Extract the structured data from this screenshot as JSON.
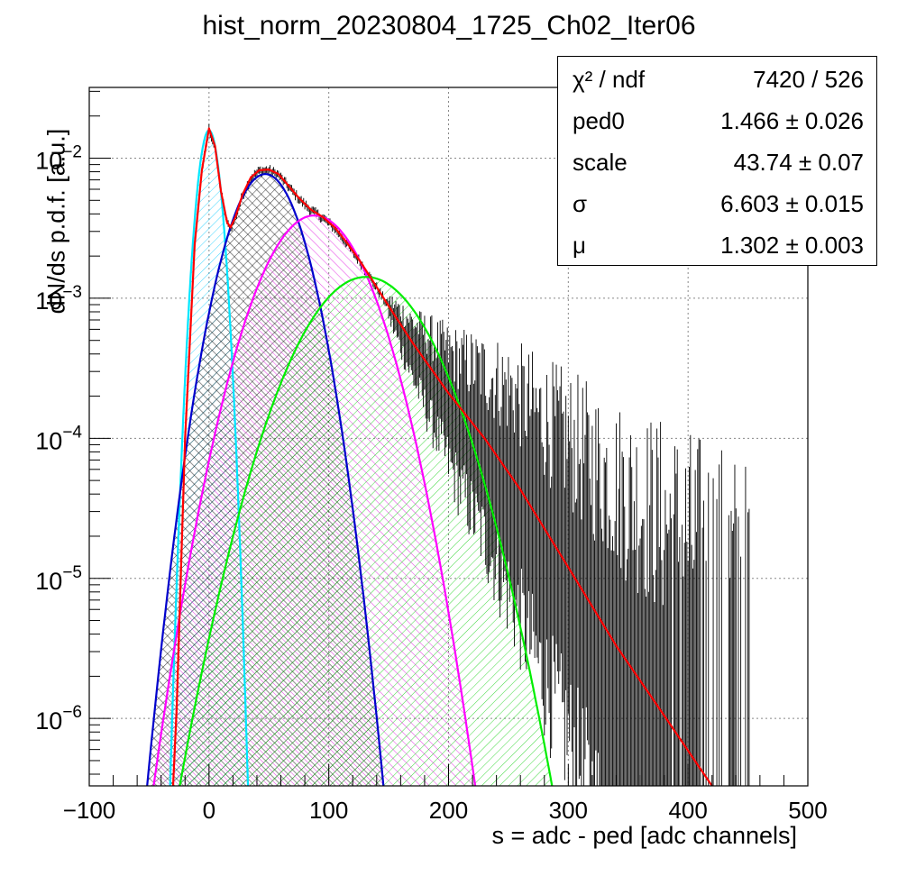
{
  "chart_data": {
    "type": "histogram-fit",
    "title": "hist_norm_20230804_1725_Ch02_Iter06",
    "xlabel": "s = adc - ped [adc channels]",
    "ylabel": "dN/ds p.d.f. [a.u.]",
    "xlim": [
      -100,
      500
    ],
    "ylim": [
      3.3e-07,
      0.032
    ],
    "yscale": "log",
    "grid": true,
    "x_ticks": [
      -100,
      0,
      100,
      200,
      300,
      400,
      500
    ],
    "x_tick_labels": [
      "−100",
      "0",
      "100",
      "200",
      "300",
      "400",
      "500"
    ],
    "y_ticks": [
      1e-06,
      1e-05,
      0.0001,
      0.001,
      0.01
    ],
    "y_tick_labels": [
      {
        "base": "10",
        "exp": "−6"
      },
      {
        "base": "10",
        "exp": "−5"
      },
      {
        "base": "10",
        "exp": "−4"
      },
      {
        "base": "10",
        "exp": "−3"
      },
      {
        "base": "10",
        "exp": "−2"
      }
    ],
    "components": [
      {
        "color": "#00e5ff",
        "hatch": "#00c8ff",
        "peak_x": 0,
        "peak_y": 0.0158,
        "sigma": 7.0
      },
      {
        "color": "#0000cc",
        "hatch": "#000000",
        "peak_x": 47,
        "peak_y": 0.0077,
        "sigma": 22.0
      },
      {
        "color": "#ff00ff",
        "hatch": "#dd00dd",
        "peak_x": 88,
        "peak_y": 0.0039,
        "sigma": 31.0
      },
      {
        "color": "#00ee00",
        "hatch": "#00cc00",
        "peak_x": 131,
        "peak_y": 0.00142,
        "sigma": 38.0
      }
    ],
    "fit": {
      "color": "#ff0000",
      "points": [
        [
          -30,
          3.3e-07
        ],
        [
          -27,
          1.2e-06
        ],
        [
          -20,
          0.0001
        ],
        [
          -12,
          0.0024
        ],
        [
          -6,
          0.0082
        ],
        [
          0,
          0.0163
        ],
        [
          5,
          0.0122
        ],
        [
          10,
          0.0058
        ],
        [
          15,
          0.0035
        ],
        [
          18,
          0.0032
        ],
        [
          22,
          0.0038
        ],
        [
          28,
          0.0055
        ],
        [
          35,
          0.0073
        ],
        [
          42,
          0.0082
        ],
        [
          50,
          0.0083
        ],
        [
          58,
          0.0077
        ],
        [
          66,
          0.0064
        ],
        [
          75,
          0.0052
        ],
        [
          85,
          0.0043
        ],
        [
          95,
          0.0038
        ],
        [
          105,
          0.0032
        ],
        [
          115,
          0.0025
        ],
        [
          125,
          0.0019
        ],
        [
          135,
          0.0014
        ],
        [
          150,
          0.00088
        ],
        [
          170,
          0.00048
        ],
        [
          200,
          0.00021
        ],
        [
          230,
          0.0001
        ],
        [
          260,
          4.3e-05
        ],
        [
          300,
          1.2e-05
        ],
        [
          340,
          3.3e-06
        ],
        [
          380,
          1.05e-06
        ],
        [
          420,
          3.3e-07
        ]
      ]
    },
    "data_extent_x": [
      -30,
      452
    ]
  },
  "stats_box": {
    "rows": [
      {
        "key": "χ² / ndf",
        "value": "7420 / 526"
      },
      {
        "key": "ped0",
        "value": "1.466 ± 0.026"
      },
      {
        "key": "scale",
        "value": "43.74 ± 0.07"
      },
      {
        "key": "σ",
        "value": "6.603 ± 0.015"
      },
      {
        "key": "μ",
        "value": "1.302 ± 0.003"
      }
    ]
  }
}
